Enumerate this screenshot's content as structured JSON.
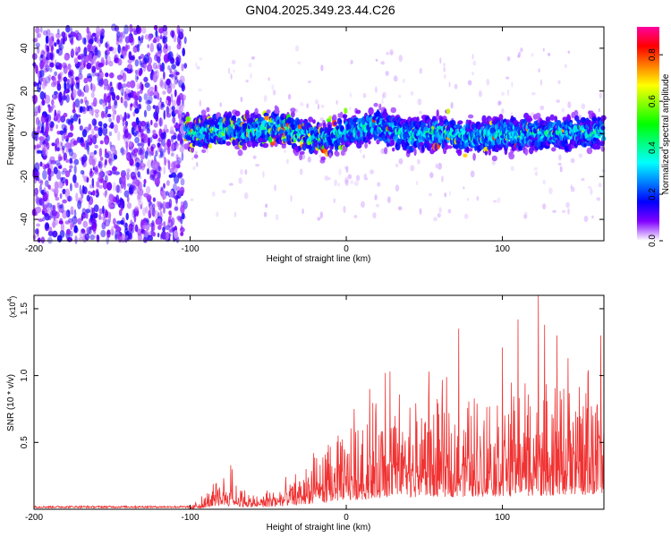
{
  "title": "GN04.2025.349.23.44.C26",
  "colors": {
    "axis": "#000000",
    "snr_line": "#f03232",
    "spectro_low": "#a070ff",
    "spectro_mid": "#0040ff",
    "spectro_high": "#ff2020"
  },
  "chart_data": [
    {
      "type": "heatmap",
      "name": "spectrogram",
      "xlabel": "Height of straight line (km)",
      "ylabel": "Frequency (Hz)",
      "xlim": [
        -200,
        165
      ],
      "ylim": [
        -50,
        50
      ],
      "xticks": [
        -200,
        -100,
        0,
        100
      ],
      "yticks": [
        40,
        20,
        0,
        -20,
        -40
      ],
      "xtick_labels": [
        "-200",
        "-100",
        "0",
        "100"
      ],
      "ytick_labels": [
        "40",
        "20",
        "0",
        "-20",
        "-40"
      ],
      "colorbar": {
        "label": "Normalized spectral amplitude",
        "range": [
          0,
          0.92
        ],
        "ticks": [
          0.0,
          0.2,
          0.4,
          0.6,
          0.8
        ],
        "tick_labels": [
          "0.0",
          "0.2",
          "0.4",
          "0.6",
          "0.8"
        ],
        "colormap": [
          "#ffffff",
          "#8000ff",
          "#0000ff",
          "#0080ff",
          "#00ffff",
          "#00ff80",
          "#00ff00",
          "#80ff00",
          "#ffff00",
          "#ff8000",
          "#ff0000",
          "#ff00a0"
        ]
      },
      "noise_region": {
        "x": [
          -200,
          -103
        ],
        "freq": [
          -50,
          50
        ],
        "amplitude": 0.08
      },
      "signal_band": {
        "x": [
          -103,
          165
        ],
        "center_freq": [
          [
            -100,
            0
          ],
          [
            -80,
            2
          ],
          [
            -60,
            1
          ],
          [
            -45,
            3
          ],
          [
            -30,
            0
          ],
          [
            -15,
            -3
          ],
          [
            0,
            1
          ],
          [
            20,
            4
          ],
          [
            40,
            -1
          ],
          [
            60,
            1
          ],
          [
            80,
            -2
          ],
          [
            100,
            0
          ],
          [
            120,
            0
          ],
          [
            140,
            0
          ],
          [
            165,
            1
          ]
        ],
        "half_width_hz": 6,
        "peak_amplitude": 0.9
      }
    },
    {
      "type": "line",
      "name": "snr",
      "xlabel": "Height of straight line (km)",
      "ylabel": "SNR (10 * v/v)",
      "multiplier_label": "(x10",
      "multiplier_exp": "4",
      "multiplier_close": ")",
      "xlim": [
        -200,
        165
      ],
      "ylim": [
        0,
        1.6
      ],
      "xticks": [
        -200,
        -100,
        0,
        100
      ],
      "xtick_labels": [
        "-200",
        "-100",
        "0",
        "100"
      ],
      "yticks": [
        0.5,
        1.0,
        1.5
      ],
      "ytick_labels": [
        "0.5",
        "1.0",
        "1.5"
      ],
      "envelope": [
        [
          -200,
          0.02
        ],
        [
          -100,
          0.02
        ],
        [
          -90,
          0.08
        ],
        [
          -80,
          0.2
        ],
        [
          -70,
          0.14
        ],
        [
          -60,
          0.08
        ],
        [
          -40,
          0.14
        ],
        [
          -20,
          0.28
        ],
        [
          0,
          0.42
        ],
        [
          20,
          0.55
        ],
        [
          40,
          0.6
        ],
        [
          80,
          0.62
        ],
        [
          120,
          0.65
        ],
        [
          165,
          0.7
        ]
      ],
      "spikes": [
        [
          -74,
          0.33
        ],
        [
          -73,
          0.3
        ],
        [
          -21,
          0.42
        ],
        [
          5,
          0.75
        ],
        [
          15,
          0.9
        ],
        [
          25,
          1.02
        ],
        [
          28,
          1.03
        ],
        [
          53,
          1.03
        ],
        [
          72,
          1.35
        ],
        [
          100,
          1.21
        ],
        [
          110,
          1.42
        ],
        [
          123,
          1.61
        ],
        [
          127,
          1.38
        ],
        [
          135,
          1.3
        ],
        [
          142,
          1.13
        ],
        [
          155,
          1.04
        ],
        [
          163,
          1.3
        ]
      ]
    }
  ]
}
